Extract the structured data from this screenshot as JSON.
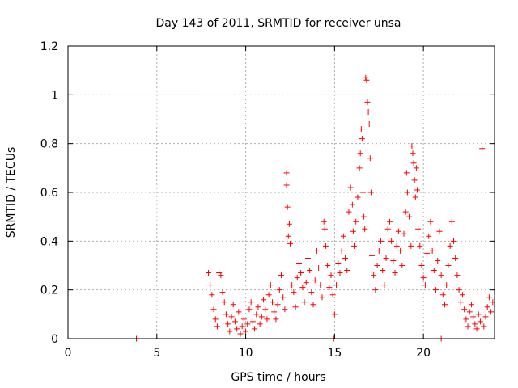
{
  "chart_data": {
    "type": "scatter",
    "title": "Day 143 of 2011, SRMTID for receiver unsa",
    "xlabel": "GPS time / hours",
    "ylabel": "SRMTID / TECUs",
    "xlim": [
      0,
      24
    ],
    "ylim": [
      0,
      1.2
    ],
    "x_ticks": [
      {
        "value": 0,
        "label": "0"
      },
      {
        "value": 5,
        "label": "5"
      },
      {
        "value": 10,
        "label": "10"
      },
      {
        "value": 15,
        "label": "15"
      },
      {
        "value": 20,
        "label": "20"
      }
    ],
    "y_ticks": [
      {
        "value": 0,
        "label": "0"
      },
      {
        "value": 0.2,
        "label": "0.2"
      },
      {
        "value": 0.4,
        "label": "0.4"
      },
      {
        "value": 0.6,
        "label": "0.6"
      },
      {
        "value": 0.8,
        "label": "0.8"
      },
      {
        "value": 1.0,
        "label": "1"
      },
      {
        "value": 1.2,
        "label": "1.2"
      }
    ],
    "grid": true,
    "marker": "+",
    "color": "#ff0000",
    "series": [
      {
        "name": "SRMTID",
        "points": [
          [
            3.85,
            0.0
          ],
          [
            14.95,
            0.0
          ],
          [
            21.0,
            0.0
          ],
          [
            7.9,
            0.27
          ],
          [
            8.0,
            0.22
          ],
          [
            8.1,
            0.18
          ],
          [
            8.2,
            0.12
          ],
          [
            8.3,
            0.08
          ],
          [
            8.4,
            0.05
          ],
          [
            8.5,
            0.27
          ],
          [
            8.6,
            0.26
          ],
          [
            8.7,
            0.19
          ],
          [
            8.8,
            0.15
          ],
          [
            8.9,
            0.1
          ],
          [
            9.0,
            0.06
          ],
          [
            9.1,
            0.03
          ],
          [
            9.2,
            0.09
          ],
          [
            9.3,
            0.14
          ],
          [
            9.4,
            0.07
          ],
          [
            9.5,
            0.04
          ],
          [
            9.6,
            0.11
          ],
          [
            9.7,
            0.02
          ],
          [
            9.8,
            0.05
          ],
          [
            9.9,
            0.08
          ],
          [
            10.0,
            0.03
          ],
          [
            10.1,
            0.06
          ],
          [
            10.2,
            0.12
          ],
          [
            10.3,
            0.15
          ],
          [
            10.4,
            0.07
          ],
          [
            10.5,
            0.04
          ],
          [
            10.6,
            0.1
          ],
          [
            10.7,
            0.13
          ],
          [
            10.8,
            0.06
          ],
          [
            10.9,
            0.09
          ],
          [
            11.0,
            0.16
          ],
          [
            11.1,
            0.12
          ],
          [
            11.2,
            0.08
          ],
          [
            11.3,
            0.18
          ],
          [
            11.4,
            0.22
          ],
          [
            11.5,
            0.15
          ],
          [
            11.6,
            0.11
          ],
          [
            11.7,
            0.08
          ],
          [
            11.8,
            0.14
          ],
          [
            11.9,
            0.2
          ],
          [
            12.0,
            0.26
          ],
          [
            12.1,
            0.17
          ],
          [
            12.2,
            0.12
          ],
          [
            12.3,
            0.68
          ],
          [
            12.3,
            0.63
          ],
          [
            12.35,
            0.54
          ],
          [
            12.4,
            0.42
          ],
          [
            12.45,
            0.47
          ],
          [
            12.5,
            0.39
          ],
          [
            12.6,
            0.22
          ],
          [
            12.7,
            0.19
          ],
          [
            12.8,
            0.13
          ],
          [
            12.9,
            0.25
          ],
          [
            13.0,
            0.31
          ],
          [
            13.1,
            0.27
          ],
          [
            13.2,
            0.21
          ],
          [
            13.3,
            0.15
          ],
          [
            13.4,
            0.23
          ],
          [
            13.5,
            0.33
          ],
          [
            13.6,
            0.28
          ],
          [
            13.7,
            0.19
          ],
          [
            13.8,
            0.14
          ],
          [
            13.9,
            0.24
          ],
          [
            14.0,
            0.36
          ],
          [
            14.1,
            0.29
          ],
          [
            14.2,
            0.22
          ],
          [
            14.3,
            0.17
          ],
          [
            14.4,
            0.48
          ],
          [
            14.45,
            0.45
          ],
          [
            14.5,
            0.38
          ],
          [
            14.6,
            0.3
          ],
          [
            14.7,
            0.21
          ],
          [
            14.8,
            0.26
          ],
          [
            14.9,
            0.18
          ],
          [
            15.0,
            0.1
          ],
          [
            15.1,
            0.22
          ],
          [
            15.2,
            0.31
          ],
          [
            15.3,
            0.27
          ],
          [
            15.4,
            0.36
          ],
          [
            15.5,
            0.42
          ],
          [
            15.6,
            0.33
          ],
          [
            15.7,
            0.28
          ],
          [
            15.8,
            0.52
          ],
          [
            15.9,
            0.62
          ],
          [
            16.0,
            0.55
          ],
          [
            16.05,
            0.44
          ],
          [
            16.1,
            0.38
          ],
          [
            16.2,
            0.48
          ],
          [
            16.3,
            0.58
          ],
          [
            16.4,
            0.7
          ],
          [
            16.45,
            0.76
          ],
          [
            16.5,
            0.86
          ],
          [
            16.55,
            0.82
          ],
          [
            16.6,
            0.6
          ],
          [
            16.65,
            0.5
          ],
          [
            16.7,
            0.45
          ],
          [
            16.75,
            1.07
          ],
          [
            16.8,
            1.06
          ],
          [
            16.85,
            0.97
          ],
          [
            16.9,
            0.93
          ],
          [
            16.95,
            0.88
          ],
          [
            17.0,
            0.74
          ],
          [
            17.05,
            0.6
          ],
          [
            17.1,
            0.34
          ],
          [
            17.2,
            0.26
          ],
          [
            17.3,
            0.2
          ],
          [
            17.4,
            0.3
          ],
          [
            17.5,
            0.36
          ],
          [
            17.6,
            0.4
          ],
          [
            17.7,
            0.28
          ],
          [
            17.8,
            0.22
          ],
          [
            17.9,
            0.33
          ],
          [
            18.0,
            0.45
          ],
          [
            18.1,
            0.48
          ],
          [
            18.2,
            0.4
          ],
          [
            18.3,
            0.32
          ],
          [
            18.4,
            0.27
          ],
          [
            18.5,
            0.38
          ],
          [
            18.6,
            0.44
          ],
          [
            18.7,
            0.36
          ],
          [
            18.8,
            0.3
          ],
          [
            18.9,
            0.43
          ],
          [
            19.0,
            0.52
          ],
          [
            19.05,
            0.68
          ],
          [
            19.1,
            0.6
          ],
          [
            19.2,
            0.5
          ],
          [
            19.3,
            0.38
          ],
          [
            19.35,
            0.79
          ],
          [
            19.4,
            0.76
          ],
          [
            19.45,
            0.72
          ],
          [
            19.5,
            0.65
          ],
          [
            19.55,
            0.58
          ],
          [
            19.6,
            0.7
          ],
          [
            19.65,
            0.61
          ],
          [
            19.7,
            0.45
          ],
          [
            19.8,
            0.38
          ],
          [
            19.9,
            0.3
          ],
          [
            20.0,
            0.25
          ],
          [
            20.1,
            0.22
          ],
          [
            20.2,
            0.35
          ],
          [
            20.3,
            0.42
          ],
          [
            20.4,
            0.48
          ],
          [
            20.5,
            0.36
          ],
          [
            20.6,
            0.28
          ],
          [
            20.7,
            0.2
          ],
          [
            20.8,
            0.32
          ],
          [
            20.9,
            0.44
          ],
          [
            21.0,
            0.26
          ],
          [
            21.1,
            0.18
          ],
          [
            21.2,
            0.14
          ],
          [
            21.3,
            0.22
          ],
          [
            21.4,
            0.3
          ],
          [
            21.5,
            0.38
          ],
          [
            21.6,
            0.48
          ],
          [
            21.7,
            0.4
          ],
          [
            21.8,
            0.33
          ],
          [
            21.9,
            0.26
          ],
          [
            22.0,
            0.2
          ],
          [
            22.1,
            0.15
          ],
          [
            22.2,
            0.18
          ],
          [
            22.3,
            0.12
          ],
          [
            22.4,
            0.08
          ],
          [
            22.5,
            0.05
          ],
          [
            22.6,
            0.11
          ],
          [
            22.7,
            0.14
          ],
          [
            22.8,
            0.09
          ],
          [
            22.9,
            0.06
          ],
          [
            23.0,
            0.04
          ],
          [
            23.1,
            0.1
          ],
          [
            23.2,
            0.07
          ],
          [
            23.3,
            0.78
          ],
          [
            23.4,
            0.05
          ],
          [
            23.5,
            0.09
          ],
          [
            23.6,
            0.13
          ],
          [
            23.7,
            0.17
          ],
          [
            23.8,
            0.11
          ],
          [
            23.9,
            0.15
          ]
        ]
      }
    ]
  }
}
